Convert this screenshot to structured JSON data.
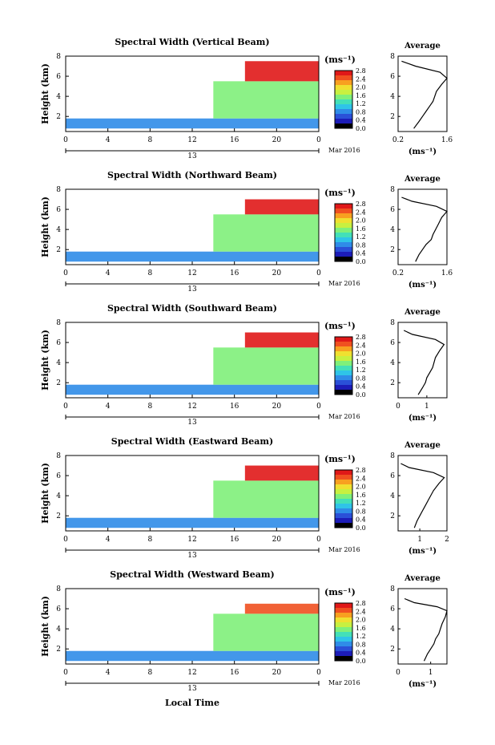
{
  "figure": {
    "xlabel": "Local Time",
    "date_label": "Mar 2016",
    "day_label": "13",
    "colorbar_unit": "(ms⁻¹)",
    "colorbar_ticks": [
      "0.0",
      "0.4",
      "0.8",
      "1.2",
      "1.6",
      "2.0",
      "2.4",
      "2.8"
    ],
    "colorbar_colors": [
      "#000000",
      "#1c1cb8",
      "#2a50d8",
      "#2f8ce8",
      "#2fc4e8",
      "#43e0b8",
      "#7ff07a",
      "#c8f040",
      "#f0e030",
      "#f8a020",
      "#f05020",
      "#e01818"
    ],
    "avg_title": "Average",
    "avg_xlabel": "(ms⁻¹)"
  },
  "chart_data": [
    {
      "type": "heatmap",
      "title": "Spectral Width (Vertical Beam)",
      "ylabel": "Height (km)",
      "x_ticks": [
        "0",
        "4",
        "8",
        "12",
        "16",
        "20",
        "0"
      ],
      "y_ticks": [
        "2",
        "4",
        "6",
        "8"
      ],
      "xlim": [
        0,
        24
      ],
      "ylim": [
        0.5,
        8
      ],
      "value_range": [
        0,
        2.8
      ],
      "bands": [
        {
          "x": [
            0,
            24
          ],
          "y": [
            0.8,
            1.8
          ],
          "value": 0.7
        },
        {
          "x": [
            14,
            24
          ],
          "y": [
            1.8,
            5.5
          ],
          "value": 1.5
        },
        {
          "x": [
            17,
            24
          ],
          "y": [
            5.5,
            7.5
          ],
          "value": 2.6
        }
      ],
      "profile": {
        "title": "Average",
        "x_ticks": [
          "0.2",
          "1.6"
        ],
        "xlim": [
          0.2,
          1.6
        ],
        "y_ticks": [
          "2",
          "4",
          "6",
          "8"
        ],
        "ylim": [
          0.5,
          8
        ],
        "x": [
          0.65,
          0.8,
          0.9,
          1.0,
          1.1,
          1.2,
          1.3,
          1.45,
          1.6,
          1.4,
          0.7,
          0.3
        ],
        "y": [
          0.8,
          1.5,
          2.0,
          2.5,
          3.0,
          3.5,
          4.5,
          5.2,
          5.8,
          6.4,
          7.0,
          7.5
        ]
      }
    },
    {
      "type": "heatmap",
      "title": "Spectral Width (Northward Beam)",
      "ylabel": "Height (km)",
      "x_ticks": [
        "0",
        "4",
        "8",
        "12",
        "16",
        "20",
        "0"
      ],
      "y_ticks": [
        "2",
        "4",
        "6",
        "8"
      ],
      "xlim": [
        0,
        24
      ],
      "ylim": [
        0.5,
        8
      ],
      "value_range": [
        0,
        2.8
      ],
      "bands": [
        {
          "x": [
            0,
            24
          ],
          "y": [
            0.8,
            1.8
          ],
          "value": 0.7
        },
        {
          "x": [
            14,
            24
          ],
          "y": [
            1.8,
            5.5
          ],
          "value": 1.5
        },
        {
          "x": [
            17,
            24
          ],
          "y": [
            5.5,
            7.0
          ],
          "value": 2.6
        }
      ],
      "profile": {
        "title": "Average",
        "x_ticks": [
          "0.2",
          "1.6"
        ],
        "xlim": [
          0.2,
          1.6
        ],
        "y_ticks": [
          "2",
          "4",
          "6",
          "8"
        ],
        "ylim": [
          0.5,
          8
        ],
        "x": [
          0.7,
          0.8,
          0.9,
          1.0,
          1.15,
          1.2,
          1.35,
          1.45,
          1.6,
          1.3,
          0.6,
          0.3
        ],
        "y": [
          0.8,
          1.5,
          2.0,
          2.5,
          3.0,
          3.5,
          4.5,
          5.2,
          5.8,
          6.3,
          6.8,
          7.2
        ]
      }
    },
    {
      "type": "heatmap",
      "title": "Spectral Width (Southward Beam)",
      "ylabel": "Height (km)",
      "x_ticks": [
        "0",
        "4",
        "8",
        "12",
        "16",
        "20",
        "0"
      ],
      "y_ticks": [
        "2",
        "4",
        "6",
        "8"
      ],
      "xlim": [
        0,
        24
      ],
      "ylim": [
        0.5,
        8
      ],
      "value_range": [
        0,
        2.8
      ],
      "bands": [
        {
          "x": [
            0,
            24
          ],
          "y": [
            0.8,
            1.8
          ],
          "value": 0.7
        },
        {
          "x": [
            14,
            24
          ],
          "y": [
            1.8,
            5.5
          ],
          "value": 1.5
        },
        {
          "x": [
            17,
            24
          ],
          "y": [
            5.5,
            7.0
          ],
          "value": 2.6
        }
      ],
      "profile": {
        "title": "Average",
        "x_ticks": [
          "0",
          "1"
        ],
        "xlim": [
          0,
          1.7
        ],
        "y_ticks": [
          "2",
          "4",
          "6",
          "8"
        ],
        "ylim": [
          0.5,
          8
        ],
        "x": [
          0.7,
          0.85,
          0.95,
          1.0,
          1.1,
          1.2,
          1.3,
          1.45,
          1.6,
          1.3,
          0.5,
          0.2
        ],
        "y": [
          0.8,
          1.5,
          2.0,
          2.5,
          3.0,
          3.5,
          4.5,
          5.2,
          5.8,
          6.3,
          6.8,
          7.2
        ]
      }
    },
    {
      "type": "heatmap",
      "title": "Spectral Width (Eastward Beam)",
      "ylabel": "Height (km)",
      "x_ticks": [
        "0",
        "4",
        "8",
        "12",
        "16",
        "20",
        "0"
      ],
      "y_ticks": [
        "2",
        "4",
        "6",
        "8"
      ],
      "xlim": [
        0,
        24
      ],
      "ylim": [
        0.5,
        8
      ],
      "value_range": [
        0,
        2.8
      ],
      "bands": [
        {
          "x": [
            0,
            24
          ],
          "y": [
            0.8,
            1.8
          ],
          "value": 0.7
        },
        {
          "x": [
            14,
            24
          ],
          "y": [
            1.8,
            5.5
          ],
          "value": 1.5
        },
        {
          "x": [
            17,
            24
          ],
          "y": [
            5.5,
            7.0
          ],
          "value": 2.6
        }
      ],
      "profile": {
        "title": "Average",
        "x_ticks": [
          "1",
          "2"
        ],
        "xlim": [
          0.2,
          2.0
        ],
        "y_ticks": [
          "2",
          "4",
          "6",
          "8"
        ],
        "ylim": [
          0.5,
          8
        ],
        "x": [
          0.8,
          0.9,
          1.0,
          1.1,
          1.2,
          1.3,
          1.5,
          1.7,
          1.9,
          1.5,
          0.6,
          0.3
        ],
        "y": [
          0.8,
          1.5,
          2.0,
          2.5,
          3.0,
          3.5,
          4.5,
          5.2,
          5.8,
          6.3,
          6.8,
          7.2
        ]
      }
    },
    {
      "type": "heatmap",
      "title": "Spectral Width (Westward Beam)",
      "ylabel": "Height (km)",
      "x_ticks": [
        "0",
        "4",
        "8",
        "12",
        "16",
        "20",
        "0"
      ],
      "y_ticks": [
        "2",
        "4",
        "6",
        "8"
      ],
      "xlim": [
        0,
        24
      ],
      "ylim": [
        0.5,
        8
      ],
      "value_range": [
        0,
        2.8
      ],
      "bands": [
        {
          "x": [
            0,
            24
          ],
          "y": [
            0.8,
            1.8
          ],
          "value": 0.7
        },
        {
          "x": [
            14,
            24
          ],
          "y": [
            1.8,
            5.5
          ],
          "value": 1.5
        },
        {
          "x": [
            17,
            24
          ],
          "y": [
            5.5,
            6.5
          ],
          "value": 2.4
        }
      ],
      "profile": {
        "title": "Average",
        "x_ticks": [
          "0",
          "1"
        ],
        "xlim": [
          0,
          1.5
        ],
        "y_ticks": [
          "2",
          "4",
          "6",
          "8"
        ],
        "ylim": [
          0.5,
          8
        ],
        "x": [
          0.8,
          0.9,
          1.0,
          1.1,
          1.15,
          1.25,
          1.35,
          1.45,
          1.5,
          1.2,
          0.5,
          0.2
        ],
        "y": [
          0.8,
          1.5,
          2.0,
          2.5,
          3.0,
          3.5,
          4.5,
          5.2,
          5.8,
          6.2,
          6.6,
          7.0
        ]
      }
    }
  ]
}
